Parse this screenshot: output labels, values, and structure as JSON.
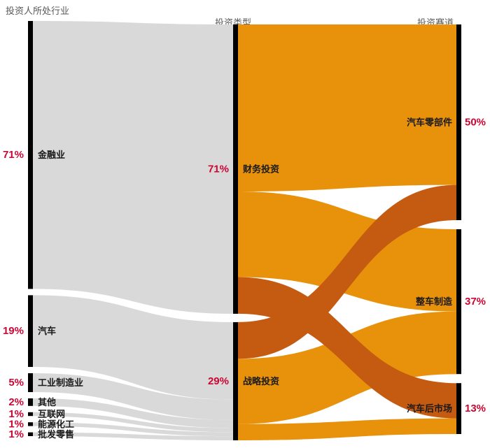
{
  "colors": {
    "flow_gray": "#D9D9D9",
    "flow_orange": "#E8920C",
    "flow_dark_orange": "#C55A11",
    "node_bar": "#000000",
    "percent_red": "#CC0633",
    "label_black": "#1A1A1A",
    "header_gray": "#595959",
    "background": "#FFFFFF"
  },
  "chart_data": {
    "type": "sankey",
    "column_headers": [
      "投资人所处行业",
      "投资类型",
      "投资赛道"
    ],
    "nodes": [
      {
        "id": "金融业",
        "column": 0,
        "value": 71,
        "percent": "71%"
      },
      {
        "id": "汽车",
        "column": 0,
        "value": 19,
        "percent": "19%"
      },
      {
        "id": "工业制造业",
        "column": 0,
        "value": 5,
        "percent": "5%"
      },
      {
        "id": "其他",
        "column": 0,
        "value": 2,
        "percent": "2%"
      },
      {
        "id": "互联网",
        "column": 0,
        "value": 1,
        "percent": "1%"
      },
      {
        "id": "能源化工",
        "column": 0,
        "value": 1,
        "percent": "1%"
      },
      {
        "id": "批发零售",
        "column": 0,
        "value": 1,
        "percent": "1%"
      },
      {
        "id": "财务投资",
        "column": 1,
        "value": 71,
        "percent": "71%"
      },
      {
        "id": "战略投资",
        "column": 1,
        "value": 29,
        "percent": "29%"
      },
      {
        "id": "汽车零部件",
        "column": 2,
        "value": 50,
        "percent": "50%"
      },
      {
        "id": "整车制造",
        "column": 2,
        "value": 37,
        "percent": "37%"
      },
      {
        "id": "汽车后市场",
        "column": 2,
        "value": 13,
        "percent": "13%"
      }
    ],
    "links": [
      {
        "source": "金融业",
        "target": "财务投资",
        "value": 71,
        "shade": "gray"
      },
      {
        "source": "汽车",
        "target": "战略投资",
        "value": 19,
        "shade": "gray"
      },
      {
        "source": "工业制造业",
        "target": "战略投资",
        "value": 5,
        "shade": "gray"
      },
      {
        "source": "其他",
        "target": "战略投资",
        "value": 2,
        "shade": "gray"
      },
      {
        "source": "互联网",
        "target": "战略投资",
        "value": 1,
        "shade": "gray"
      },
      {
        "source": "能源化工",
        "target": "战略投资",
        "value": 1,
        "shade": "gray"
      },
      {
        "source": "批发零售",
        "target": "战略投资",
        "value": 1,
        "shade": "gray"
      },
      {
        "source": "财务投资",
        "target": "汽车零部件",
        "value": 41,
        "shade": "orange"
      },
      {
        "source": "财务投资",
        "target": "整车制造",
        "value": 21,
        "shade": "orange"
      },
      {
        "source": "财务投资",
        "target": "汽车后市场",
        "value": 9,
        "shade": "dark"
      },
      {
        "source": "战略投资",
        "target": "汽车零部件",
        "value": 9,
        "shade": "dark"
      },
      {
        "source": "战略投资",
        "target": "整车制造",
        "value": 16,
        "shade": "orange"
      },
      {
        "source": "战略投资",
        "target": "汽车后市场",
        "value": 4,
        "shade": "orange"
      }
    ]
  }
}
